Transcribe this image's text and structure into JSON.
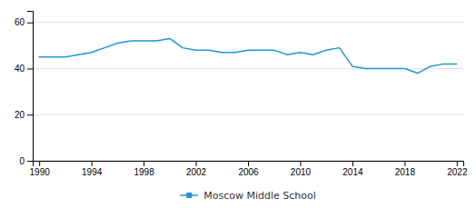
{
  "chart_data": {
    "type": "line",
    "x": [
      1990,
      1991,
      1992,
      1993,
      1994,
      1995,
      1996,
      1997,
      1998,
      1999,
      2000,
      2001,
      2002,
      2003,
      2004,
      2005,
      2006,
      2007,
      2008,
      2009,
      2010,
      2011,
      2012,
      2013,
      2014,
      2015,
      2016,
      2017,
      2018,
      2019,
      2020,
      2021,
      2022
    ],
    "series": [
      {
        "name": "Moscow Middle School",
        "color": "#2196d3",
        "values": [
          45,
          45,
          45,
          46,
          47,
          49,
          51,
          52,
          52,
          52,
          53,
          49,
          48,
          48,
          47,
          47,
          48,
          48,
          48,
          46,
          47,
          46,
          48,
          49,
          41,
          40,
          40,
          40,
          40,
          38,
          41,
          42,
          42
        ]
      }
    ],
    "xlim": [
      1989.5,
      2022.5
    ],
    "ylim": [
      0,
      65
    ],
    "xticks": [
      1990,
      1994,
      1998,
      2002,
      2006,
      2010,
      2014,
      2018,
      2022
    ],
    "yticks": [
      0,
      20,
      40,
      60
    ],
    "grid": true,
    "legend": "bottom"
  }
}
